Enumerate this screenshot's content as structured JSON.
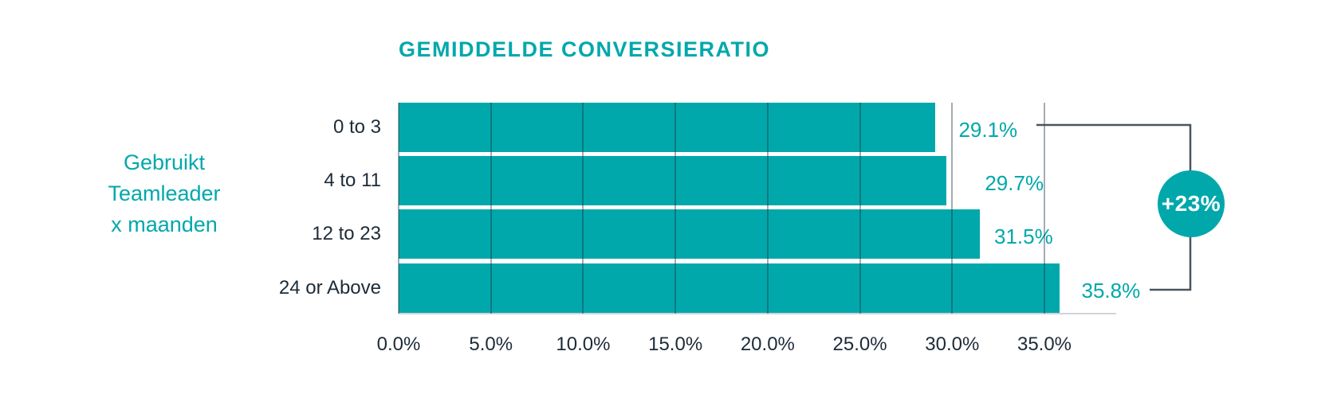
{
  "title": "GEMIDDELDE CONVERSIERATIO",
  "side_label": {
    "lines": [
      "Gebruikt",
      "Teamleader",
      "x maanden"
    ]
  },
  "chart_data": {
    "type": "bar",
    "orientation": "horizontal",
    "title": "GEMIDDELDE CONVERSIERATIO",
    "ylabel": "Gebruikt Teamleader x maanden",
    "categories": [
      "0 to 3",
      "4 to 11",
      "12 to 23",
      "24 or Above"
    ],
    "values": [
      29.1,
      29.7,
      31.5,
      35.8
    ],
    "value_labels": [
      "29.1%",
      "29.7%",
      "31.5%",
      "35.8%"
    ],
    "x_tick_values": [
      0,
      5,
      10,
      15,
      20,
      25,
      30,
      35
    ],
    "x_tick_labels": [
      "0.0%",
      "5.0%",
      "10.0%",
      "15.0%",
      "20.0%",
      "25.0%",
      "30.0%",
      "35.0%"
    ],
    "xlim": [
      0,
      38.9
    ],
    "grid": true,
    "legend": false,
    "bar_color": "#00a8ab",
    "text_color": "#1d2b38"
  },
  "annotation": {
    "label": "+23%",
    "from_category": "0 to 3",
    "to_category": "24 or Above",
    "badge_color": "#00a8ab",
    "line_color": "#4a545e"
  }
}
